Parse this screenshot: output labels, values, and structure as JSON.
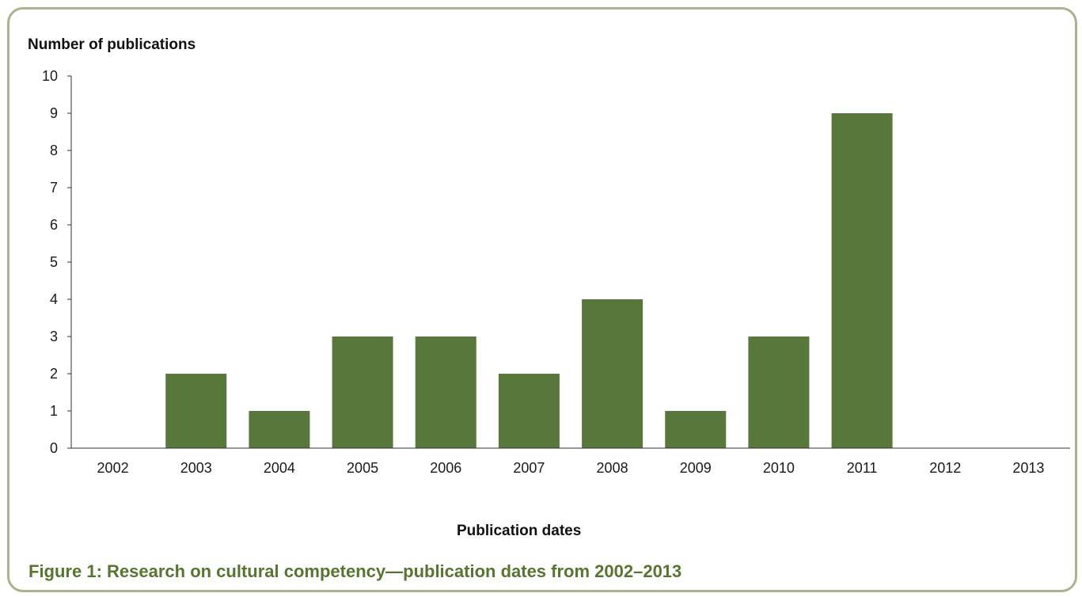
{
  "chart_data": {
    "type": "bar",
    "categories": [
      "2002",
      "2003",
      "2004",
      "2005",
      "2006",
      "2007",
      "2008",
      "2009",
      "2010",
      "2011",
      "2012",
      "2013"
    ],
    "values": [
      0,
      2,
      1,
      3,
      3,
      2,
      4,
      1,
      3,
      9,
      0,
      0
    ],
    "ylabel": "Number of publications",
    "xlabel": "Publication dates",
    "yticks": [
      "0",
      "1",
      "2",
      "3",
      "4",
      "5",
      "6",
      "7",
      "8",
      "9",
      "10"
    ],
    "ylim": [
      0,
      10
    ],
    "bar_color": "#58773a",
    "grid": false
  },
  "caption": "Figure 1: Research on cultural competency—publication dates from 2002–2013",
  "frame_color": "#a9b48c",
  "caption_color": "#56752e"
}
